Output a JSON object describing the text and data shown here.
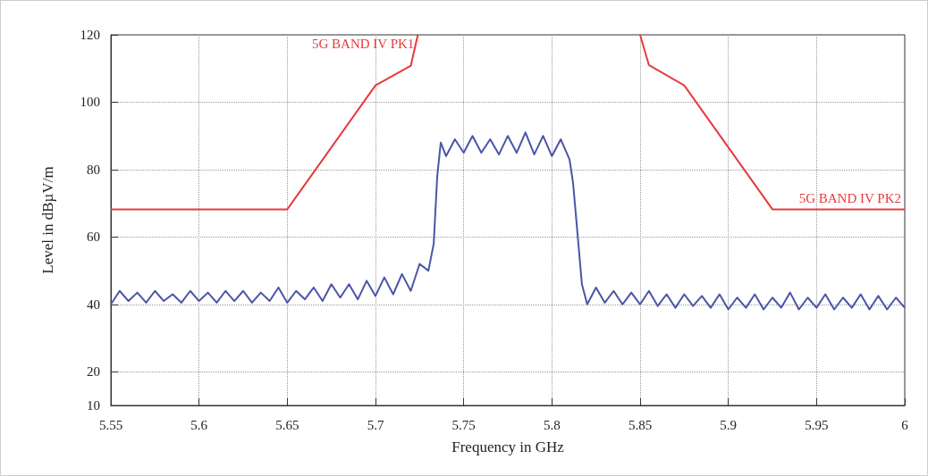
{
  "chart_data": {
    "type": "line",
    "xlabel": "Frequency in GHz",
    "ylabel": "Level in dBµV/m",
    "xlim": [
      5.55,
      6
    ],
    "xticks": [
      5.55,
      5.6,
      5.65,
      5.7,
      5.75,
      5.8,
      5.85,
      5.9,
      5.95,
      6
    ],
    "ylim": [
      10,
      120
    ],
    "yticks": [
      10,
      20,
      40,
      60,
      80,
      100,
      120
    ],
    "grid": true,
    "marker": "none",
    "line_style": "solid",
    "series": [
      {
        "color": "#4a55a8",
        "x": [
          5.55,
          5.555,
          5.56,
          5.565,
          5.57,
          5.575,
          5.58,
          5.585,
          5.59,
          5.595,
          5.6,
          5.605,
          5.61,
          5.615,
          5.62,
          5.625,
          5.63,
          5.635,
          5.64,
          5.645,
          5.65,
          5.655,
          5.66,
          5.665,
          5.67,
          5.675,
          5.68,
          5.685,
          5.69,
          5.695,
          5.7,
          5.705,
          5.71,
          5.715,
          5.72,
          5.725,
          5.73,
          5.733,
          5.735,
          5.737,
          5.74,
          5.745,
          5.75,
          5.755,
          5.76,
          5.765,
          5.77,
          5.775,
          5.78,
          5.785,
          5.79,
          5.795,
          5.8,
          5.805,
          5.81,
          5.812,
          5.815,
          5.817,
          5.82,
          5.825,
          5.83,
          5.835,
          5.84,
          5.845,
          5.85,
          5.855,
          5.86,
          5.865,
          5.87,
          5.875,
          5.88,
          5.885,
          5.89,
          5.895,
          5.9,
          5.905,
          5.91,
          5.915,
          5.92,
          5.925,
          5.93,
          5.935,
          5.94,
          5.945,
          5.95,
          5.955,
          5.96,
          5.965,
          5.97,
          5.975,
          5.98,
          5.985,
          5.99,
          5.995,
          6
        ],
        "values": [
          40,
          44,
          41,
          43.5,
          40.5,
          44,
          41,
          43,
          40.5,
          44,
          41,
          43.5,
          40.5,
          44,
          41,
          44,
          40.5,
          43.5,
          41,
          45,
          40.5,
          44,
          41.5,
          45,
          41,
          46,
          42,
          46,
          41.5,
          47,
          42.5,
          48,
          43,
          49,
          44,
          52,
          50,
          58,
          78,
          88,
          84,
          89,
          85,
          90,
          85,
          89,
          84.5,
          90,
          85,
          91,
          84.5,
          90,
          84,
          89,
          83,
          76,
          58,
          46,
          40,
          45,
          40.5,
          44,
          40,
          43.5,
          40,
          44,
          39.5,
          43,
          39,
          43,
          39.5,
          42.5,
          39,
          43,
          38.5,
          42,
          39,
          43,
          38.5,
          42,
          39,
          43.5,
          38.5,
          42,
          39,
          43,
          38.5,
          42,
          39,
          43,
          38.5,
          42.5,
          38.5,
          42,
          39
        ]
      },
      {
        "color": "#e83a3a",
        "x": [
          5.55,
          5.65,
          5.7,
          5.72,
          5.724
        ],
        "values": [
          68.2,
          68.2,
          105,
          110.8,
          120
        ]
      },
      {
        "color": "#e83a3a",
        "x": [
          5.85,
          5.855,
          5.875,
          5.925,
          6
        ],
        "values": [
          120,
          111,
          105,
          68.2,
          68.2
        ]
      }
    ],
    "annotations": [
      "5G BAND IV PK1",
      "5G BAND IV PK2"
    ]
  }
}
